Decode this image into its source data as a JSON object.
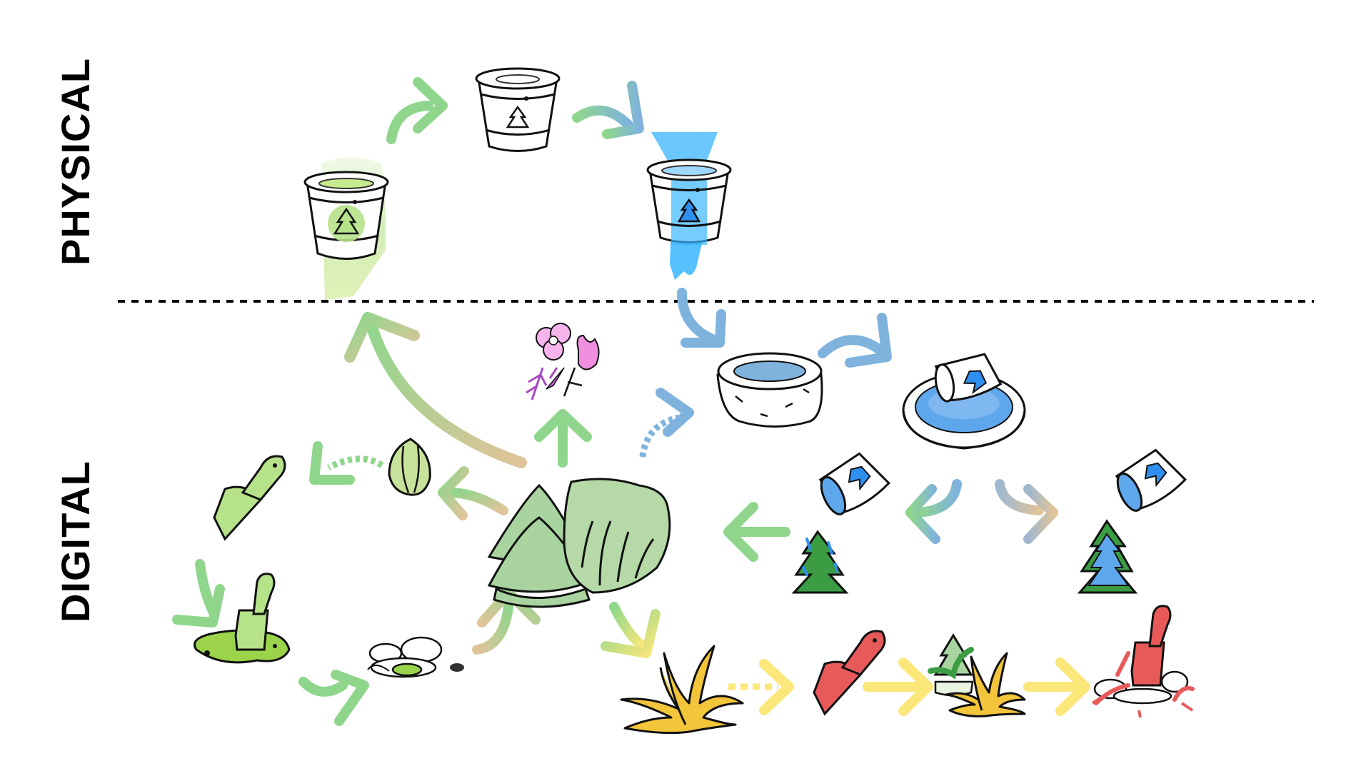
{
  "labels": {
    "physical": "PHYSICAL",
    "digital": "DIGITAL"
  },
  "colors": {
    "green": "#8fd68c",
    "light_green": "#b6e28a",
    "blue": "#7fb3de",
    "bright_blue": "#3ab6ff",
    "tan": "#e0c49a",
    "yellow": "#fbe77a",
    "pink": "#f08fe0",
    "red": "#e85a5a",
    "gold": "#f3c53a",
    "gray_green": "#a9d4a0"
  },
  "icons": [
    "bucket-icon",
    "pot-icon",
    "tree-icon",
    "flower-icon",
    "seed-icon",
    "trowel-icon",
    "rocks-icon",
    "grass-icon",
    "well-icon",
    "fountain-icon",
    "tipping-bucket-icon"
  ]
}
